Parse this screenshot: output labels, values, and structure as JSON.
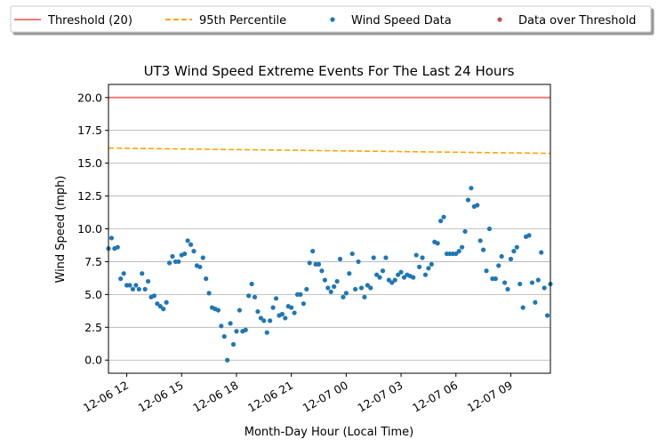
{
  "chart_data": {
    "type": "scatter",
    "title": "UT3 Wind Speed Extreme Events For The Last 24 Hours",
    "x_label": "Month-Day Hour (Local Time)",
    "y_label": "Wind Speed (mph)",
    "x": [
      "12-06 11:00",
      "12-06 11:10",
      "12-06 11:20",
      "12-06 11:30",
      "12-06 11:40",
      "12-06 11:50",
      "12-06 12:00",
      "12-06 12:10",
      "12-06 12:20",
      "12-06 12:30",
      "12-06 12:40",
      "12-06 12:50",
      "12-06 13:00",
      "12-06 13:10",
      "12-06 13:20",
      "12-06 13:30",
      "12-06 13:40",
      "12-06 13:50",
      "12-06 14:00",
      "12-06 14:10",
      "12-06 14:20",
      "12-06 14:30",
      "12-06 14:40",
      "12-06 14:50",
      "12-06 15:00",
      "12-06 15:10",
      "12-06 15:20",
      "12-06 15:30",
      "12-06 15:40",
      "12-06 15:50",
      "12-06 16:00",
      "12-06 16:10",
      "12-06 16:20",
      "12-06 16:30",
      "12-06 16:40",
      "12-06 16:50",
      "12-06 17:00",
      "12-06 17:10",
      "12-06 17:20",
      "12-06 17:30",
      "12-06 17:40",
      "12-06 17:50",
      "12-06 18:00",
      "12-06 18:10",
      "12-06 18:20",
      "12-06 18:30",
      "12-06 18:40",
      "12-06 18:50",
      "12-06 19:00",
      "12-06 19:10",
      "12-06 19:20",
      "12-06 19:30",
      "12-06 19:40",
      "12-06 19:50",
      "12-06 20:00",
      "12-06 20:10",
      "12-06 20:20",
      "12-06 20:30",
      "12-06 20:40",
      "12-06 20:50",
      "12-06 21:00",
      "12-06 21:10",
      "12-06 21:20",
      "12-06 21:30",
      "12-06 21:40",
      "12-06 21:50",
      "12-06 22:00",
      "12-06 22:10",
      "12-06 22:20",
      "12-06 22:30",
      "12-06 22:40",
      "12-06 22:50",
      "12-06 23:00",
      "12-06 23:10",
      "12-06 23:20",
      "12-06 23:30",
      "12-06 23:40",
      "12-06 23:50",
      "12-07 00:00",
      "12-07 00:10",
      "12-07 00:20",
      "12-07 00:30",
      "12-07 00:40",
      "12-07 00:50",
      "12-07 01:00",
      "12-07 01:10",
      "12-07 01:20",
      "12-07 01:30",
      "12-07 01:40",
      "12-07 01:50",
      "12-07 02:00",
      "12-07 02:10",
      "12-07 02:20",
      "12-07 02:30",
      "12-07 02:40",
      "12-07 02:50",
      "12-07 03:00",
      "12-07 03:10",
      "12-07 03:20",
      "12-07 03:30",
      "12-07 03:40",
      "12-07 03:50",
      "12-07 04:00",
      "12-07 04:10",
      "12-07 04:20",
      "12-07 04:30",
      "12-07 04:40",
      "12-07 04:50",
      "12-07 05:00",
      "12-07 05:10",
      "12-07 05:20",
      "12-07 05:30",
      "12-07 05:40",
      "12-07 05:50",
      "12-07 06:00",
      "12-07 06:10",
      "12-07 06:20",
      "12-07 06:30",
      "12-07 06:40",
      "12-07 06:50",
      "12-07 07:00",
      "12-07 07:10",
      "12-07 07:20",
      "12-07 07:30",
      "12-07 07:40",
      "12-07 07:50",
      "12-07 08:00",
      "12-07 08:10",
      "12-07 08:20",
      "12-07 08:30",
      "12-07 08:40",
      "12-07 08:50",
      "12-07 09:00",
      "12-07 09:10",
      "12-07 09:20",
      "12-07 09:30",
      "12-07 09:40",
      "12-07 09:50",
      "12-07 10:00",
      "12-07 10:10",
      "12-07 10:20",
      "12-07 10:30",
      "12-07 10:40",
      "12-07 10:50",
      "12-07 11:00",
      "12-07 11:10"
    ],
    "series": [
      {
        "name": "Threshold (20)",
        "kind": "line",
        "color": "#f07878",
        "dash": false,
        "x": [
          "12-06 11:00",
          "12-07 11:10"
        ],
        "values": [
          20,
          20
        ]
      },
      {
        "name": "95th Percentile",
        "kind": "line",
        "color": "#ffa500",
        "dash": true,
        "x": [
          "12-06 11:00",
          "12-07 11:10"
        ],
        "values": [
          16.15,
          15.75
        ]
      },
      {
        "name": "Wind Speed Data",
        "kind": "scatter",
        "color": "#1f77b4",
        "values": [
          8.5,
          9.3,
          8.5,
          8.6,
          6.2,
          6.6,
          5.7,
          5.7,
          5.4,
          5.7,
          5.4,
          6.6,
          5.4,
          6.0,
          4.8,
          4.9,
          4.3,
          4.1,
          3.9,
          4.4,
          7.4,
          7.9,
          7.5,
          7.5,
          8.0,
          8.1,
          9.1,
          8.8,
          8.3,
          7.2,
          7.1,
          7.8,
          6.2,
          5.1,
          4.0,
          3.9,
          3.8,
          2.6,
          1.8,
          0.0,
          2.8,
          1.2,
          2.2,
          3.8,
          2.2,
          2.3,
          4.9,
          5.8,
          4.8,
          3.7,
          3.2,
          3.0,
          2.1,
          3.0,
          4.0,
          4.7,
          3.4,
          3.5,
          3.2,
          4.1,
          4.0,
          3.6,
          5.0,
          5.0,
          4.3,
          5.4,
          7.4,
          8.3,
          7.3,
          7.3,
          6.8,
          6.1,
          5.5,
          5.2,
          5.6,
          6.0,
          7.7,
          4.8,
          5.1,
          6.6,
          8.1,
          5.4,
          7.5,
          5.5,
          4.8,
          5.7,
          5.5,
          7.8,
          6.5,
          6.3,
          6.8,
          7.8,
          6.1,
          5.9,
          6.1,
          6.5,
          6.7,
          6.3,
          6.5,
          6.4,
          6.3,
          8.0,
          7.1,
          7.8,
          6.5,
          7.0,
          7.3,
          9.0,
          8.9,
          10.6,
          10.9,
          8.1,
          8.1,
          8.1,
          8.1,
          8.3,
          8.6,
          9.8,
          12.2,
          13.1,
          11.7,
          11.8,
          9.1,
          8.4,
          6.8,
          10.0,
          6.2,
          6.2,
          7.2,
          7.9,
          5.9,
          5.4,
          7.7,
          8.3,
          8.6,
          5.8,
          4.0,
          9.4,
          9.5,
          5.9,
          4.4,
          6.1,
          8.2,
          5.5,
          3.4,
          5.8
        ]
      },
      {
        "name": "Data over Threshold",
        "kind": "scatter",
        "color": "#c44e52",
        "values": []
      }
    ],
    "xlim": [
      "12-06 11:00",
      "12-07 11:10"
    ],
    "xticks": [
      {
        "value": "12-06 12:00",
        "label": "12-06 12"
      },
      {
        "value": "12-06 15:00",
        "label": "12-06 15"
      },
      {
        "value": "12-06 18:00",
        "label": "12-06 18"
      },
      {
        "value": "12-06 21:00",
        "label": "12-06 21"
      },
      {
        "value": "12-07 00:00",
        "label": "12-07 00"
      },
      {
        "value": "12-07 03:00",
        "label": "12-07 03"
      },
      {
        "value": "12-07 06:00",
        "label": "12-07 06"
      },
      {
        "value": "12-07 09:00",
        "label": "12-07 09"
      }
    ],
    "ylim": [
      -1,
      21
    ],
    "yticks": [
      {
        "value": 0,
        "label": "0.0"
      },
      {
        "value": 2.5,
        "label": "2.5"
      },
      {
        "value": 5,
        "label": "5.0"
      },
      {
        "value": 7.5,
        "label": "7.5"
      },
      {
        "value": 10,
        "label": "10.0"
      },
      {
        "value": 12.5,
        "label": "12.5"
      },
      {
        "value": 15,
        "label": "15.0"
      },
      {
        "value": 17.5,
        "label": "17.5"
      },
      {
        "value": 20,
        "label": "20.0"
      }
    ],
    "grid": "y",
    "legend": "top"
  }
}
